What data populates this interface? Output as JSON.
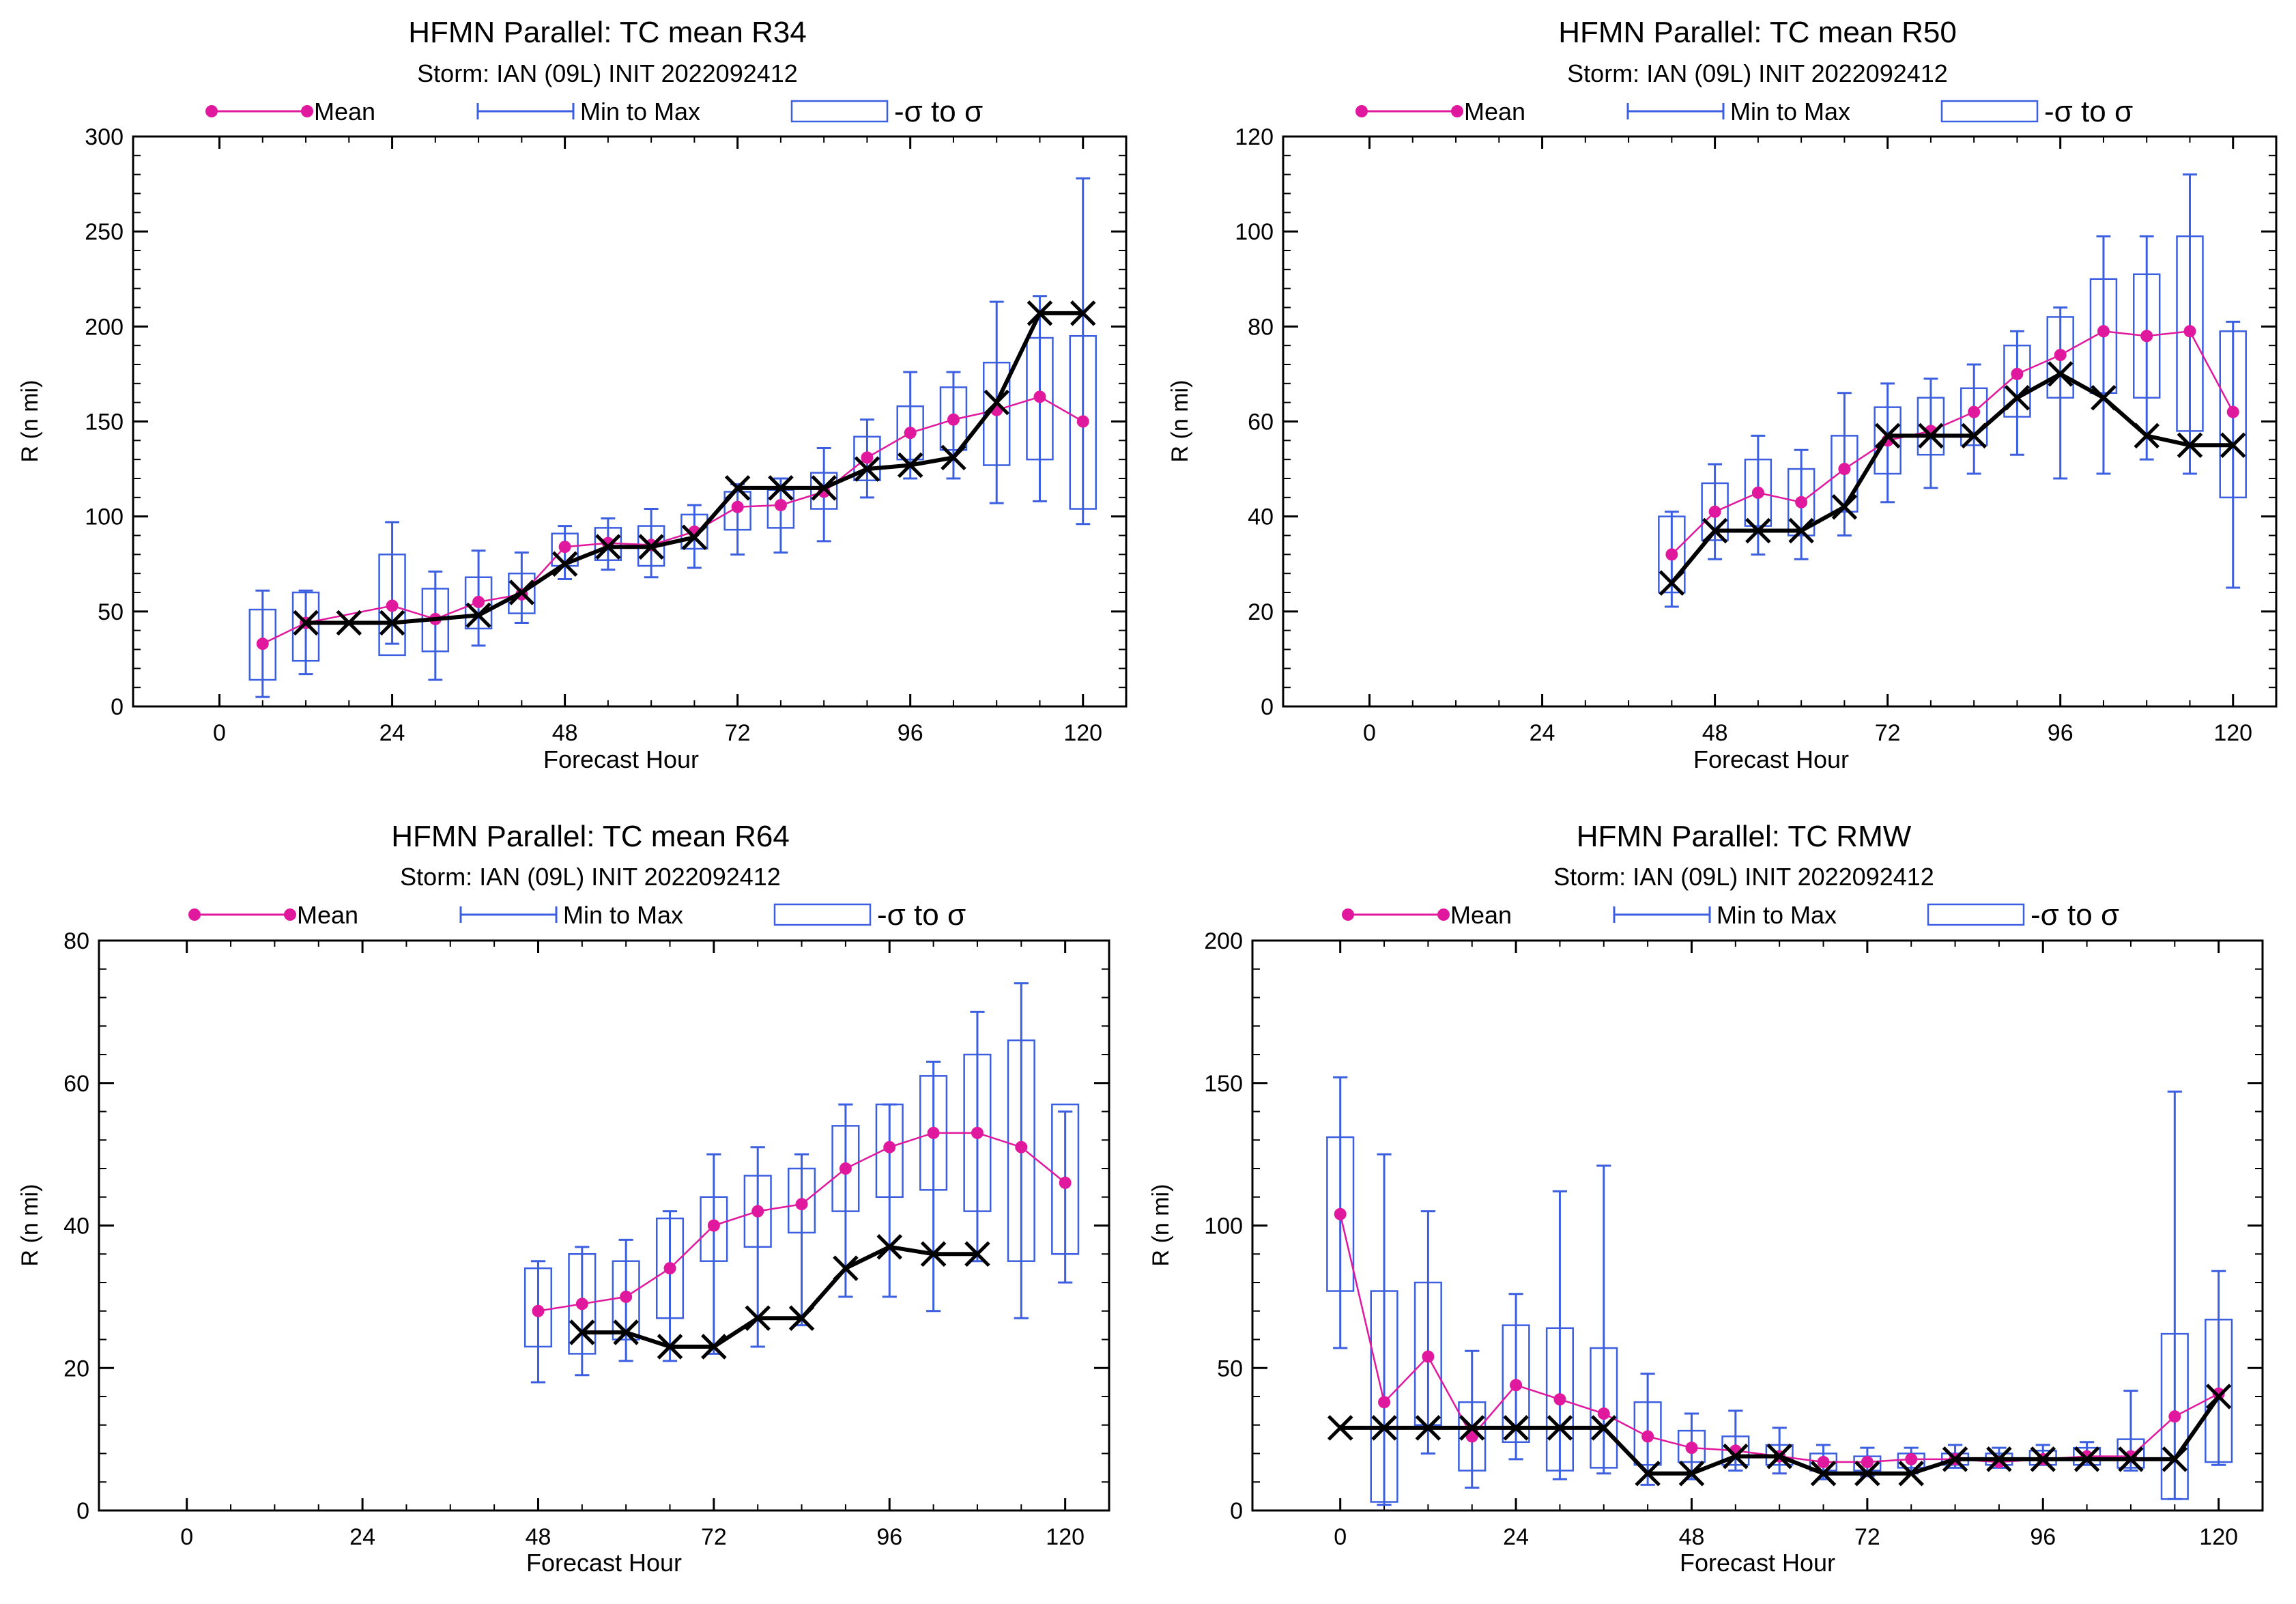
{
  "colors": {
    "mean": "#e0189e",
    "range": "#3b5fe0",
    "obs": "#000000",
    "axis": "#000000"
  },
  "charts": [
    {
      "title": "HFMN Parallel: TC mean R34",
      "subtitle": "Storm: IAN (09L) INIT 2022092412",
      "legend": {
        "mean": "Mean",
        "range": "Min to Max",
        "sigma": "-σ to σ"
      },
      "xlabel": "Forecast Hour",
      "ylabel": "R (n mi)",
      "xticks": [
        "0",
        "24",
        "48",
        "72",
        "96",
        "120"
      ],
      "yticks": [
        "0",
        "50",
        "100",
        "150",
        "200",
        "250",
        "300"
      ]
    },
    {
      "title": "HFMN Parallel: TC mean R50",
      "subtitle": "Storm: IAN (09L) INIT 2022092412",
      "legend": {
        "mean": "Mean",
        "range": "Min to Max",
        "sigma": "-σ to σ"
      },
      "xlabel": "Forecast Hour",
      "ylabel": "R (n mi)",
      "xticks": [
        "0",
        "24",
        "48",
        "72",
        "96",
        "120"
      ],
      "yticks": [
        "0",
        "20",
        "40",
        "60",
        "80",
        "100",
        "120"
      ]
    },
    {
      "title": "HFMN Parallel: TC mean R64",
      "subtitle": "Storm: IAN (09L) INIT 2022092412",
      "legend": {
        "mean": "Mean",
        "range": "Min to Max",
        "sigma": "-σ to σ"
      },
      "xlabel": "Forecast Hour",
      "ylabel": "R (n mi)",
      "xticks": [
        "0",
        "24",
        "48",
        "72",
        "96",
        "120"
      ],
      "yticks": [
        "0",
        "20",
        "40",
        "60",
        "80"
      ]
    },
    {
      "title": "HFMN Parallel: TC RMW",
      "subtitle": "Storm: IAN (09L) INIT 2022092412",
      "legend": {
        "mean": "Mean",
        "range": "Min to Max",
        "sigma": "-σ to σ"
      },
      "xlabel": "Forecast Hour",
      "ylabel": "R (n mi)",
      "xticks": [
        "0",
        "24",
        "48",
        "72",
        "96",
        "120"
      ],
      "yticks": [
        "0",
        "50",
        "100",
        "150",
        "200"
      ]
    }
  ],
  "chart_data": [
    {
      "type": "line",
      "title": "HFMN Parallel: TC mean R34",
      "xlabel": "Forecast Hour",
      "ylabel": "R (n mi)",
      "xlim": [
        -12,
        126
      ],
      "ylim": [
        0,
        300
      ],
      "legend_position": "top",
      "series": [
        {
          "name": "Mean",
          "x": [
            6,
            12,
            24,
            30,
            36,
            42,
            48,
            54,
            60,
            66,
            72,
            78,
            84,
            90,
            96,
            102,
            108,
            114,
            120
          ],
          "y": [
            33,
            44,
            53,
            46,
            55,
            59,
            84,
            86,
            85,
            92,
            105,
            106,
            113,
            131,
            144,
            151,
            156,
            163,
            150
          ]
        },
        {
          "name": "Min to Max",
          "x": [
            6,
            12,
            24,
            30,
            36,
            42,
            48,
            54,
            60,
            66,
            72,
            78,
            84,
            90,
            96,
            102,
            108,
            114,
            120
          ],
          "low": [
            5,
            17,
            33,
            14,
            32,
            44,
            67,
            72,
            68,
            73,
            80,
            81,
            87,
            110,
            120,
            120,
            107,
            108,
            96
          ],
          "high": [
            61,
            61,
            97,
            71,
            82,
            81,
            95,
            99,
            104,
            106,
            117,
            120,
            136,
            151,
            176,
            176,
            213,
            216,
            278
          ]
        },
        {
          "name": "-σ to σ",
          "x": [
            6,
            12,
            24,
            30,
            36,
            42,
            48,
            54,
            60,
            66,
            72,
            78,
            84,
            90,
            96,
            102,
            108,
            114,
            120
          ],
          "low": [
            14,
            24,
            27,
            29,
            41,
            49,
            74,
            77,
            74,
            83,
            93,
            94,
            104,
            119,
            130,
            135,
            127,
            130,
            104
          ],
          "high": [
            51,
            60,
            80,
            62,
            68,
            70,
            91,
            94,
            95,
            101,
            113,
            114,
            123,
            142,
            158,
            168,
            181,
            194,
            195
          ]
        },
        {
          "name": "",
          "x": [
            12,
            18,
            24,
            36,
            42,
            48,
            54,
            60,
            66,
            72,
            78,
            84,
            90,
            96,
            102,
            108,
            114,
            120
          ],
          "y": [
            44,
            44,
            44,
            48,
            60,
            75,
            84,
            84,
            89,
            115,
            115,
            115,
            125,
            127,
            131,
            160,
            207,
            207
          ]
        }
      ]
    },
    {
      "type": "line",
      "title": "HFMN Parallel: TC mean R50",
      "xlabel": "Forecast Hour",
      "ylabel": "R (n mi)",
      "xlim": [
        -12,
        126
      ],
      "ylim": [
        0,
        120
      ],
      "legend_position": "top",
      "series": [
        {
          "name": "Mean",
          "x": [
            42,
            48,
            54,
            60,
            66,
            72,
            78,
            84,
            90,
            96,
            102,
            108,
            114,
            120
          ],
          "y": [
            32,
            41,
            45,
            43,
            50,
            56,
            58,
            62,
            70,
            74,
            79,
            78,
            79,
            62
          ]
        },
        {
          "name": "Min to Max",
          "x": [
            42,
            48,
            54,
            60,
            66,
            72,
            78,
            84,
            90,
            96,
            102,
            108,
            114,
            120
          ],
          "low": [
            21,
            31,
            32,
            31,
            36,
            43,
            46,
            49,
            53,
            48,
            49,
            52,
            49,
            25
          ],
          "high": [
            41,
            51,
            57,
            54,
            66,
            68,
            69,
            72,
            79,
            84,
            99,
            99,
            112,
            81
          ]
        },
        {
          "name": "-σ to σ",
          "x": [
            42,
            48,
            54,
            60,
            66,
            72,
            78,
            84,
            90,
            96,
            102,
            108,
            114,
            120
          ],
          "low": [
            24,
            35,
            38,
            36,
            41,
            49,
            53,
            55,
            61,
            65,
            66,
            65,
            58,
            44
          ],
          "high": [
            40,
            47,
            52,
            50,
            57,
            63,
            65,
            67,
            76,
            82,
            90,
            91,
            99,
            79
          ]
        },
        {
          "name": "",
          "x": [
            42,
            48,
            54,
            60,
            66,
            72,
            78,
            84,
            90,
            96,
            102,
            108,
            114,
            120
          ],
          "y": [
            26,
            37,
            37,
            37,
            42,
            57,
            57,
            57,
            65,
            70,
            65,
            57,
            55,
            55
          ]
        }
      ]
    },
    {
      "type": "line",
      "title": "HFMN Parallel: TC mean R64",
      "xlabel": "Forecast Hour",
      "ylabel": "R (n mi)",
      "xlim": [
        -12,
        126
      ],
      "ylim": [
        0,
        80
      ],
      "legend_position": "top",
      "series": [
        {
          "name": "Mean",
          "x": [
            48,
            54,
            60,
            66,
            72,
            78,
            84,
            90,
            96,
            102,
            108,
            114,
            120
          ],
          "y": [
            28,
            29,
            30,
            34,
            40,
            42,
            43,
            48,
            51,
            53,
            53,
            51,
            46
          ]
        },
        {
          "name": "Min to Max",
          "x": [
            48,
            54,
            60,
            66,
            72,
            78,
            84,
            90,
            96,
            102,
            108,
            114,
            120
          ],
          "low": [
            18,
            19,
            21,
            21,
            22,
            23,
            26,
            30,
            30,
            28,
            35,
            27,
            32
          ],
          "high": [
            35,
            37,
            38,
            42,
            50,
            51,
            50,
            57,
            57,
            63,
            70,
            74,
            56
          ]
        },
        {
          "name": "-σ to σ",
          "x": [
            48,
            54,
            60,
            66,
            72,
            78,
            84,
            90,
            96,
            102,
            108,
            114,
            120
          ],
          "low": [
            23,
            22,
            24,
            27,
            35,
            37,
            39,
            42,
            44,
            45,
            42,
            35,
            36
          ],
          "high": [
            34,
            36,
            35,
            41,
            44,
            47,
            48,
            54,
            57,
            61,
            64,
            66,
            57
          ]
        },
        {
          "name": "",
          "x": [
            54,
            60,
            66,
            72,
            78,
            84,
            90,
            96,
            102,
            108
          ],
          "y": [
            25,
            25,
            23,
            23,
            27,
            27,
            34,
            37,
            36,
            36
          ]
        }
      ]
    },
    {
      "type": "line",
      "title": "HFMN Parallel: TC RMW",
      "xlabel": "Forecast Hour",
      "ylabel": "R (n mi)",
      "xlim": [
        -12,
        126
      ],
      "ylim": [
        0,
        200
      ],
      "legend_position": "top",
      "series": [
        {
          "name": "Mean",
          "x": [
            0,
            6,
            12,
            18,
            24,
            30,
            36,
            42,
            48,
            54,
            60,
            66,
            72,
            78,
            84,
            90,
            96,
            102,
            108,
            114,
            120
          ],
          "y": [
            104,
            38,
            54,
            26,
            44,
            39,
            34,
            26,
            22,
            21,
            19,
            17,
            17,
            18,
            18,
            17,
            18,
            19,
            19,
            33,
            41
          ]
        },
        {
          "name": "Min to Max",
          "x": [
            0,
            6,
            12,
            18,
            24,
            30,
            36,
            42,
            48,
            54,
            60,
            66,
            72,
            78,
            84,
            90,
            96,
            102,
            108,
            114,
            120
          ],
          "low": [
            57,
            2,
            20,
            8,
            18,
            11,
            13,
            9,
            11,
            14,
            13,
            11,
            12,
            13,
            15,
            15,
            16,
            16,
            14,
            4,
            16
          ],
          "high": [
            152,
            125,
            105,
            56,
            76,
            112,
            121,
            48,
            34,
            35,
            29,
            23,
            22,
            22,
            23,
            22,
            23,
            24,
            42,
            147,
            84
          ]
        },
        {
          "name": "-σ to σ",
          "x": [
            0,
            6,
            12,
            18,
            24,
            30,
            36,
            42,
            48,
            54,
            60,
            66,
            72,
            78,
            84,
            90,
            96,
            102,
            108,
            114,
            120
          ],
          "low": [
            77,
            3,
            30,
            14,
            24,
            14,
            15,
            16,
            17,
            16,
            16,
            14,
            14,
            15,
            16,
            16,
            16,
            16,
            15,
            4,
            17
          ],
          "high": [
            131,
            77,
            80,
            38,
            65,
            64,
            57,
            38,
            28,
            26,
            23,
            20,
            19,
            20,
            20,
            20,
            21,
            22,
            25,
            62,
            67
          ]
        },
        {
          "name": "",
          "x": [
            0,
            6,
            12,
            18,
            24,
            30,
            36,
            42,
            48,
            54,
            60,
            66,
            72,
            78,
            84,
            90,
            96,
            102,
            108,
            114,
            120
          ],
          "y": [
            29,
            29,
            29,
            29,
            29,
            29,
            29,
            13,
            13,
            19,
            19,
            13,
            13,
            13,
            18,
            18,
            18,
            18,
            18,
            18,
            40
          ]
        }
      ]
    }
  ]
}
